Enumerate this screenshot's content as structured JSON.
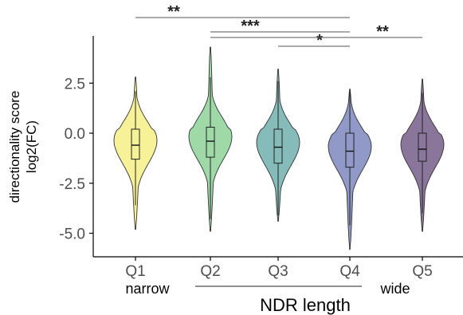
{
  "chart_data": {
    "type": "violin",
    "ylabel_line1": "directionality score",
    "ylabel_line2": "log2(FC)",
    "xlabel": "NDR length",
    "x_left_note": "narrow",
    "x_right_note": "wide",
    "categories": [
      "Q1",
      "Q2",
      "Q3",
      "Q4",
      "Q5"
    ],
    "yticks": [
      2.5,
      0.0,
      -2.5,
      -5.0
    ],
    "ytick_labels": [
      "2.5",
      "0.0",
      "-2.5",
      "-5.0"
    ],
    "ylim": [
      -6.3,
      4.8
    ],
    "colors": [
      "#f7f298",
      "#9fd9a8",
      "#85bcb9",
      "#9099c7",
      "#8a769b"
    ],
    "series": [
      {
        "name": "Q1",
        "max": 2.8,
        "q3": 0.2,
        "median": -0.6,
        "q1": -1.3,
        "min": -4.8,
        "whisker_hi": 2.1,
        "whisker_lo": -3.6
      },
      {
        "name": "Q2",
        "max": 4.3,
        "q3": 0.3,
        "median": -0.4,
        "q1": -1.2,
        "min": -4.9,
        "whisker_hi": 2.8,
        "whisker_lo": -4.3
      },
      {
        "name": "Q3",
        "max": 3.2,
        "q3": 0.2,
        "median": -0.7,
        "q1": -1.5,
        "min": -4.4,
        "whisker_hi": 2.6,
        "whisker_lo": -4.1
      },
      {
        "name": "Q4",
        "max": 2.2,
        "q3": 0.0,
        "median": -0.9,
        "q1": -1.7,
        "min": -5.8,
        "whisker_hi": 2.1,
        "whisker_lo": -4.6
      },
      {
        "name": "Q5",
        "max": 2.7,
        "q3": 0.0,
        "median": -0.8,
        "q1": -1.4,
        "min": -4.9,
        "whisker_hi": 2.0,
        "whisker_lo": -4.0
      }
    ],
    "significance": [
      {
        "from": "Q1",
        "to": "Q4",
        "label": "**"
      },
      {
        "from": "Q2",
        "to": "Q4",
        "label": "***"
      },
      {
        "from": "Q3",
        "to": "Q4",
        "label": "*"
      },
      {
        "from": "Q2",
        "to": "Q5",
        "label": "**"
      }
    ]
  }
}
